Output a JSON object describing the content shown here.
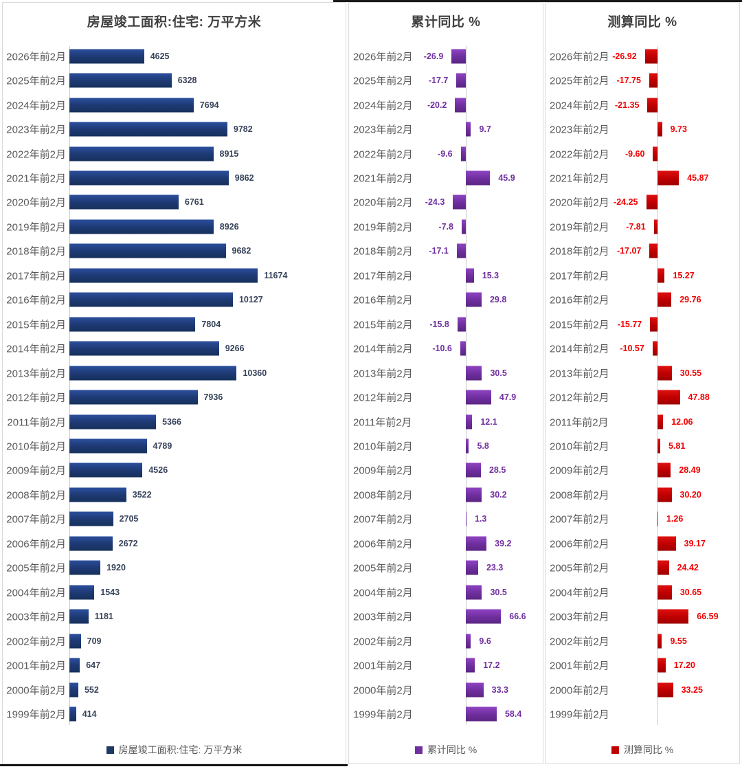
{
  "chart_data": [
    {
      "type": "bar",
      "orientation": "horizontal",
      "title": "房屋竣工面积:住宅: 万平方米",
      "legend": "房屋竣工面积:住宅: 万平方米",
      "color": "#1F3864",
      "label_color": "#37435A",
      "xlim": [
        0,
        12000
      ],
      "grid": false,
      "legend_position": "bottom",
      "categories": [
        "2026年前2月",
        "2025年前2月",
        "2024年前2月",
        "2023年前2月",
        "2022年前2月",
        "2021年前2月",
        "2020年前2月",
        "2019年前2月",
        "2018年前2月",
        "2017年前2月",
        "2016年前2月",
        "2015年前2月",
        "2014年前2月",
        "2013年前2月",
        "2012年前2月",
        "2011年前2月",
        "2010年前2月",
        "2009年前2月",
        "2008年前2月",
        "2007年前2月",
        "2006年前2月",
        "2005年前2月",
        "2004年前2月",
        "2003年前2月",
        "2002年前2月",
        "2001年前2月",
        "2000年前2月",
        "1999年前2月"
      ],
      "values": [
        4625,
        6328,
        7694,
        9782,
        8915,
        9862,
        6761,
        8926,
        9682,
        11674,
        10127,
        7804,
        9266,
        10360,
        7936,
        5366,
        4789,
        4526,
        3522,
        2705,
        2672,
        1920,
        1543,
        1181,
        709,
        647,
        552,
        414
      ],
      "value_labels": [
        "4625",
        "6328",
        "7694",
        "9782",
        "8915",
        "9862",
        "6761",
        "8926",
        "9682",
        "11674",
        "10127",
        "7804",
        "9266",
        "10360",
        "7936",
        "5366",
        "4789",
        "4526",
        "3522",
        "2705",
        "2672",
        "1920",
        "1543",
        "1181",
        "709",
        "647",
        "552",
        "414"
      ]
    },
    {
      "type": "bar",
      "orientation": "horizontal",
      "title": "累计同比 %",
      "legend": "累计同比 %",
      "color": "#7030A0",
      "label_color": "#7030A0",
      "xlim": [
        -30,
        70
      ],
      "grid": false,
      "legend_position": "bottom",
      "categories": [
        "2026年前2月",
        "2025年前2月",
        "2024年前2月",
        "2023年前2月",
        "2022年前2月",
        "2021年前2月",
        "2020年前2月",
        "2019年前2月",
        "2018年前2月",
        "2017年前2月",
        "2016年前2月",
        "2015年前2月",
        "2014年前2月",
        "2013年前2月",
        "2012年前2月",
        "2011年前2月",
        "2010年前2月",
        "2009年前2月",
        "2008年前2月",
        "2007年前2月",
        "2006年前2月",
        "2005年前2月",
        "2004年前2月",
        "2003年前2月",
        "2002年前2月",
        "2001年前2月",
        "2000年前2月",
        "1999年前2月"
      ],
      "values": [
        -26.9,
        -17.7,
        -20.2,
        9.7,
        -9.6,
        45.9,
        -24.3,
        -7.8,
        -17.1,
        15.3,
        29.8,
        -15.8,
        -10.6,
        30.5,
        47.9,
        12.1,
        5.8,
        28.5,
        30.2,
        1.3,
        39.2,
        23.3,
        30.5,
        66.6,
        9.6,
        17.2,
        33.3,
        58.4
      ],
      "value_labels": [
        "-26.9",
        "-17.7",
        "-20.2",
        "9.7",
        "-9.6",
        "45.9",
        "-24.3",
        "-7.8",
        "-17.1",
        "15.3",
        "29.8",
        "-15.8",
        "-10.6",
        "30.5",
        "47.9",
        "12.1",
        "5.8",
        "28.5",
        "30.2",
        "1.3",
        "39.2",
        "23.3",
        "30.5",
        "66.6",
        "9.6",
        "17.2",
        "33.3",
        "58.4"
      ]
    },
    {
      "type": "bar",
      "orientation": "horizontal",
      "title": "测算同比 %",
      "legend": "测算同比 %",
      "color": "#C00000",
      "label_color": "#F20000",
      "xlim": [
        -30,
        70
      ],
      "grid": false,
      "legend_position": "bottom",
      "categories": [
        "2026年前2月",
        "2025年前2月",
        "2024年前2月",
        "2023年前2月",
        "2022年前2月",
        "2021年前2月",
        "2020年前2月",
        "2019年前2月",
        "2018年前2月",
        "2017年前2月",
        "2016年前2月",
        "2015年前2月",
        "2014年前2月",
        "2013年前2月",
        "2012年前2月",
        "2011年前2月",
        "2010年前2月",
        "2009年前2月",
        "2008年前2月",
        "2007年前2月",
        "2006年前2月",
        "2005年前2月",
        "2004年前2月",
        "2003年前2月",
        "2002年前2月",
        "2001年前2月",
        "2000年前2月",
        "1999年前2月"
      ],
      "values": [
        -26.92,
        -17.75,
        -21.35,
        9.73,
        -9.6,
        45.87,
        -24.25,
        -7.81,
        -17.07,
        15.27,
        29.76,
        -15.77,
        -10.57,
        30.55,
        47.88,
        12.06,
        5.81,
        28.49,
        30.2,
        1.26,
        39.17,
        24.42,
        30.65,
        66.59,
        9.55,
        17.2,
        33.25,
        null
      ],
      "value_labels": [
        "-26.92",
        "-17.75",
        "-21.35",
        "9.73",
        "-9.60",
        "45.87",
        "-24.25",
        "-7.81",
        "-17.07",
        "15.27",
        "29.76",
        "-15.77",
        "-10.57",
        "30.55",
        "47.88",
        "12.06",
        "5.81",
        "28.49",
        "30.20",
        "1.26",
        "39.17",
        "24.42",
        "30.65",
        "66.59",
        "9.55",
        "17.20",
        "33.25",
        null
      ]
    }
  ]
}
